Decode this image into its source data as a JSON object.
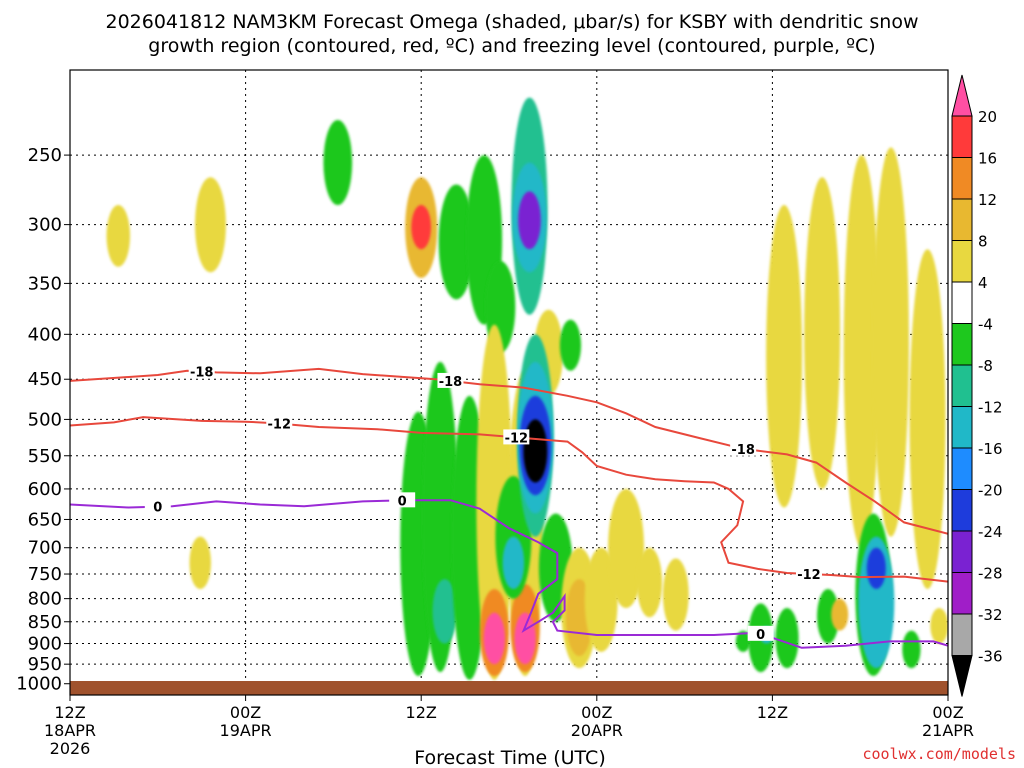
{
  "chart_data": {
    "type": "heatmap",
    "title_line1": "2026041812 NAM3KM Forecast Omega (shaded, μbar/s) for KSBY with dendritic snow",
    "title_line2": "growth region (contoured, red, ºC) and freezing level (contoured, purple, ºC)",
    "xlabel": "Forecast Time (UTC)",
    "ylabel": "",
    "y_axis": {
      "scale": "log-pressure",
      "range": [
        1030,
        200
      ],
      "ticks": [
        250,
        300,
        350,
        400,
        450,
        500,
        550,
        600,
        650,
        700,
        750,
        800,
        850,
        900,
        950,
        1000
      ]
    },
    "x_axis": {
      "range_hours": [
        0,
        60
      ],
      "ticks": [
        {
          "hour": 0,
          "label1": "12Z",
          "label2": "18APR",
          "label3": "2026"
        },
        {
          "hour": 12,
          "label1": "00Z",
          "label2": "19APR",
          "label3": ""
        },
        {
          "hour": 24,
          "label1": "12Z",
          "label2": "",
          "label3": ""
        },
        {
          "hour": 36,
          "label1": "00Z",
          "label2": "20APR",
          "label3": ""
        },
        {
          "hour": 48,
          "label1": "12Z",
          "label2": "",
          "label3": ""
        },
        {
          "hour": 60,
          "label1": "00Z",
          "label2": "21APR",
          "label3": ""
        }
      ]
    },
    "colorbar": {
      "labels": [
        "20",
        "16",
        "12",
        "8",
        "4",
        "-4",
        "-8",
        "-12",
        "-16",
        "-20",
        "-24",
        "-28",
        "-32",
        "-36"
      ],
      "colors": [
        "#ff4fa3",
        "#ff3a3a",
        "#f08a24",
        "#e8b830",
        "#e8d840",
        "#ffffff",
        "#1ec81e",
        "#20c090",
        "#20b8c8",
        "#1e8cff",
        "#1e3cdc",
        "#7a22d2",
        "#a01ec8",
        "#a8a8a8",
        "#000000"
      ]
    },
    "omega_cells": [
      {
        "t": 3.3,
        "p0": 285,
        "p1": 335,
        "v": 5
      },
      {
        "t": 9.6,
        "p0": 265,
        "p1": 340,
        "v": 5
      },
      {
        "t": 18.3,
        "p0": 228,
        "p1": 285,
        "v": -6
      },
      {
        "t": 24.0,
        "p0": 265,
        "p1": 345,
        "v": 10
      },
      {
        "t": 24.0,
        "p0": 285,
        "p1": 320,
        "v": 18
      },
      {
        "t": 26.4,
        "p0": 270,
        "p1": 365,
        "v": -6
      },
      {
        "t": 28.3,
        "p0": 250,
        "p1": 390,
        "v": -6
      },
      {
        "t": 29.4,
        "p0": 330,
        "p1": 420,
        "v": -6
      },
      {
        "t": 31.4,
        "p0": 215,
        "p1": 380,
        "v": -8
      },
      {
        "t": 31.4,
        "p0": 255,
        "p1": 340,
        "v": -14
      },
      {
        "t": 31.4,
        "p0": 275,
        "p1": 320,
        "v": -26
      },
      {
        "t": 32.7,
        "p0": 375,
        "p1": 470,
        "v": 5
      },
      {
        "t": 34.2,
        "p0": 385,
        "p1": 440,
        "v": -6
      },
      {
        "t": 8.9,
        "p0": 680,
        "p1": 780,
        "v": 5
      },
      {
        "t": 48.8,
        "p0": 285,
        "p1": 630,
        "v": 5
      },
      {
        "t": 51.4,
        "p0": 265,
        "p1": 600,
        "v": 5
      },
      {
        "t": 54.1,
        "p0": 250,
        "p1": 700,
        "v": 5
      },
      {
        "t": 56.1,
        "p0": 245,
        "p1": 680,
        "v": 5
      },
      {
        "t": 58.6,
        "p0": 320,
        "p1": 780,
        "v": 5
      },
      {
        "t": 23.8,
        "p0": 490,
        "p1": 980,
        "v": -6
      },
      {
        "t": 25.3,
        "p0": 430,
        "p1": 970,
        "v": -6
      },
      {
        "t": 25.6,
        "p0": 760,
        "p1": 900,
        "v": -10
      },
      {
        "t": 27.3,
        "p0": 470,
        "p1": 990,
        "v": -6
      },
      {
        "t": 29.0,
        "p0": 390,
        "p1": 990,
        "v": 5
      },
      {
        "t": 29.0,
        "p0": 780,
        "p1": 980,
        "v": 14
      },
      {
        "t": 29.0,
        "p0": 830,
        "p1": 950,
        "v": 20
      },
      {
        "t": 31.1,
        "p0": 440,
        "p1": 980,
        "v": 5
      },
      {
        "t": 31.1,
        "p0": 770,
        "p1": 970,
        "v": 14
      },
      {
        "t": 31.1,
        "p0": 830,
        "p1": 950,
        "v": 20
      },
      {
        "t": 30.3,
        "p0": 580,
        "p1": 800,
        "v": -6
      },
      {
        "t": 30.3,
        "p0": 680,
        "p1": 780,
        "v": -14
      },
      {
        "t": 31.8,
        "p0": 400,
        "p1": 680,
        "v": -8
      },
      {
        "t": 31.8,
        "p0": 430,
        "p1": 640,
        "v": -14
      },
      {
        "t": 31.8,
        "p0": 470,
        "p1": 610,
        "v": -22
      },
      {
        "t": 31.8,
        "p0": 500,
        "p1": 590,
        "v": -36
      },
      {
        "t": 33.2,
        "p0": 640,
        "p1": 850,
        "v": -6
      },
      {
        "t": 34.8,
        "p0": 700,
        "p1": 960,
        "v": 5
      },
      {
        "t": 34.8,
        "p0": 760,
        "p1": 930,
        "v": 10
      },
      {
        "t": 36.3,
        "p0": 700,
        "p1": 920,
        "v": 5
      },
      {
        "t": 38.0,
        "p0": 600,
        "p1": 820,
        "v": 5
      },
      {
        "t": 39.6,
        "p0": 700,
        "p1": 840,
        "v": 5
      },
      {
        "t": 41.4,
        "p0": 720,
        "p1": 870,
        "v": 5
      },
      {
        "t": 46.0,
        "p0": 870,
        "p1": 920,
        "v": -6
      },
      {
        "t": 47.2,
        "p0": 810,
        "p1": 970,
        "v": -6
      },
      {
        "t": 47.6,
        "p0": 860,
        "p1": 900,
        "v": -12
      },
      {
        "t": 49.0,
        "p0": 820,
        "p1": 960,
        "v": -6
      },
      {
        "t": 51.8,
        "p0": 780,
        "p1": 900,
        "v": -6
      },
      {
        "t": 52.6,
        "p0": 800,
        "p1": 870,
        "v": 9
      },
      {
        "t": 54.9,
        "p0": 640,
        "p1": 980,
        "v": -6
      },
      {
        "t": 55.1,
        "p0": 680,
        "p1": 960,
        "v": -14
      },
      {
        "t": 55.1,
        "p0": 700,
        "p1": 780,
        "v": -22
      },
      {
        "t": 57.5,
        "p0": 870,
        "p1": 960,
        "v": -6
      },
      {
        "t": 59.4,
        "p0": 820,
        "p1": 900,
        "v": 5
      }
    ],
    "contours": [
      {
        "name": "-18",
        "color": "#e8483c",
        "labels": [
          {
            "t": 9.0,
            "text": "-18"
          },
          {
            "t": 26.0,
            "text": "-18"
          },
          {
            "t": 46.0,
            "text": "-18"
          }
        ],
        "points": [
          [
            0,
            452
          ],
          [
            6,
            445
          ],
          [
            8,
            440
          ],
          [
            10,
            442
          ],
          [
            13,
            443
          ],
          [
            17,
            438
          ],
          [
            20,
            444
          ],
          [
            25,
            450
          ],
          [
            28,
            456
          ],
          [
            31,
            460
          ],
          [
            34,
            470
          ],
          [
            36,
            478
          ],
          [
            38,
            492
          ],
          [
            40,
            510
          ],
          [
            43,
            525
          ],
          [
            46,
            540
          ],
          [
            49,
            548
          ],
          [
            51,
            560
          ],
          [
            53,
            590
          ],
          [
            55,
            620
          ],
          [
            57,
            655
          ],
          [
            60,
            675
          ]
        ]
      },
      {
        "name": "-12",
        "color": "#e8483c",
        "labels": [
          {
            "t": 14.3,
            "text": "-12"
          },
          {
            "t": 30.5,
            "text": "-12"
          },
          {
            "t": 50.5,
            "text": "-12"
          }
        ],
        "points": [
          [
            0,
            508
          ],
          [
            3,
            504
          ],
          [
            5,
            497
          ],
          [
            9,
            502
          ],
          [
            12,
            503
          ],
          [
            14,
            505
          ],
          [
            17,
            510
          ],
          [
            21,
            513
          ],
          [
            24,
            518
          ],
          [
            28,
            520
          ],
          [
            31,
            525
          ],
          [
            34,
            530
          ],
          [
            35,
            545
          ],
          [
            36,
            565
          ],
          [
            38,
            578
          ],
          [
            40,
            585
          ],
          [
            42,
            588
          ],
          [
            44,
            590
          ],
          [
            45,
            600
          ],
          [
            46,
            620
          ],
          [
            45.6,
            660
          ],
          [
            44.5,
            690
          ],
          [
            45,
            728
          ],
          [
            47,
            740
          ],
          [
            49,
            748
          ],
          [
            52,
            752
          ],
          [
            54,
            756
          ],
          [
            57,
            755
          ],
          [
            60,
            765
          ]
        ]
      },
      {
        "name": "0",
        "color": "#9a2ad6",
        "labels": [
          {
            "t": 6.0,
            "text": "0"
          },
          {
            "t": 22.7,
            "text": "0"
          },
          {
            "t": 47.2,
            "text": "0"
          }
        ],
        "points": [
          [
            0,
            625
          ],
          [
            4,
            630
          ],
          [
            7,
            628
          ],
          [
            10,
            620
          ],
          [
            13,
            625
          ],
          [
            16,
            628
          ],
          [
            20,
            620
          ],
          [
            23,
            618
          ],
          [
            26,
            618
          ],
          [
            28,
            632
          ],
          [
            30,
            665
          ],
          [
            32,
            690
          ],
          [
            33.3,
            710
          ],
          [
            33.3,
            760
          ],
          [
            32,
            790
          ],
          [
            31.5,
            830
          ],
          [
            31,
            870
          ],
          [
            32,
            850
          ],
          [
            33,
            830
          ],
          [
            33.8,
            795
          ],
          [
            33.8,
            825
          ],
          [
            33,
            850
          ],
          [
            33.3,
            870
          ],
          [
            36,
            880
          ],
          [
            40,
            880
          ],
          [
            44,
            880
          ],
          [
            47,
            875
          ],
          [
            50,
            910
          ],
          [
            53,
            905
          ],
          [
            56,
            895
          ],
          [
            59,
            895
          ],
          [
            60,
            905
          ]
        ]
      }
    ]
  },
  "footer": {
    "credit": "coolwx.com/models"
  }
}
